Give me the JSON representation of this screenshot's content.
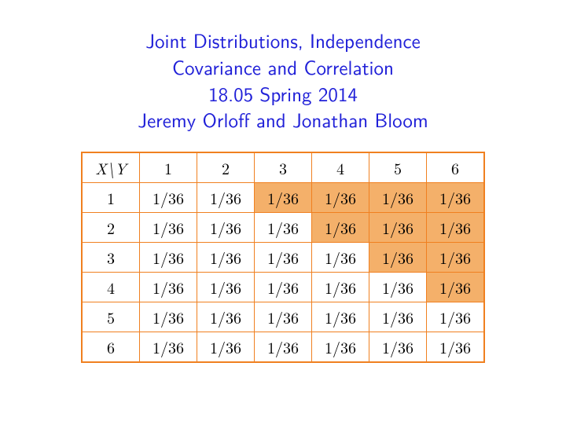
{
  "title": {
    "line1": "Joint Distributions, Independence",
    "line2": "Covariance and Correlation",
    "line3": "18.05 Spring 2014",
    "line4": "Jeremy Orloff and Jonathan Bloom",
    "color": "#2020d8",
    "fontsize": 25
  },
  "table": {
    "corner_label": "X\\Y",
    "border_color": "#f08020",
    "highlight_color": "#f4b06a",
    "background_color": "#ffffff",
    "text_color": "#000000",
    "cell_fontsize": 20,
    "col_headers": [
      "1",
      "2",
      "3",
      "4",
      "5",
      "6"
    ],
    "row_headers": [
      "1",
      "2",
      "3",
      "4",
      "5",
      "6"
    ],
    "cells": [
      [
        "1/36",
        "1/36",
        "1/36",
        "1/36",
        "1/36",
        "1/36"
      ],
      [
        "1/36",
        "1/36",
        "1/36",
        "1/36",
        "1/36",
        "1/36"
      ],
      [
        "1/36",
        "1/36",
        "1/36",
        "1/36",
        "1/36",
        "1/36"
      ],
      [
        "1/36",
        "1/36",
        "1/36",
        "1/36",
        "1/36",
        "1/36"
      ],
      [
        "1/36",
        "1/36",
        "1/36",
        "1/36",
        "1/36",
        "1/36"
      ],
      [
        "1/36",
        "1/36",
        "1/36",
        "1/36",
        "1/36",
        "1/36"
      ]
    ],
    "highlight": [
      [
        false,
        false,
        true,
        true,
        true,
        true
      ],
      [
        false,
        false,
        false,
        true,
        true,
        true
      ],
      [
        false,
        false,
        false,
        false,
        true,
        true
      ],
      [
        false,
        false,
        false,
        false,
        false,
        true
      ],
      [
        false,
        false,
        false,
        false,
        false,
        false
      ],
      [
        false,
        false,
        false,
        false,
        false,
        false
      ]
    ]
  }
}
